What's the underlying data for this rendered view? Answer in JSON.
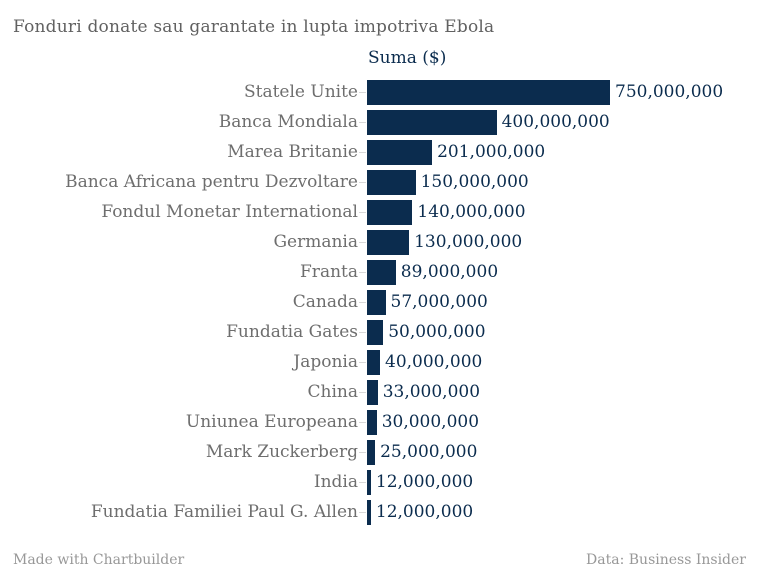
{
  "title": "Fonduri donate sau garantate in lupta impotriva Ebola",
  "series_label": "Suma ($)",
  "footer": {
    "left": "Made with Chartbuilder",
    "right": "Data: Business Insider"
  },
  "colors": {
    "bar": "#0b2c4e",
    "value_text": "#0b2c4e",
    "title_text": "#616161",
    "category_text": "#6e6e6e",
    "tick": "#d8d8d8",
    "footer_text": "#989898",
    "background": "#ffffff"
  },
  "chart_data": {
    "type": "bar",
    "orientation": "horizontal",
    "title": "Fonduri donate sau garantate in lupta impotriva Ebola",
    "series_name": "Suma ($)",
    "categories": [
      "Statele Unite",
      "Banca Mondiala",
      "Marea Britanie",
      "Banca Africana pentru Dezvoltare",
      "Fondul Monetar International",
      "Germania",
      "Franta",
      "Canada",
      "Fundatia Gates",
      "Japonia",
      "China",
      "Uniunea Europeana",
      "Mark Zuckerberg",
      "India",
      "Fundatia Familiei Paul G. Allen"
    ],
    "values": [
      750000000,
      400000000,
      201000000,
      150000000,
      140000000,
      130000000,
      89000000,
      57000000,
      50000000,
      40000000,
      33000000,
      30000000,
      25000000,
      12000000,
      12000000
    ],
    "value_labels": [
      "750,000,000",
      "400,000,000",
      "201,000,000",
      "150,000,000",
      "140,000,000",
      "130,000,000",
      "89,000,000",
      "57,000,000",
      "50,000,000",
      "40,000,000",
      "33,000,000",
      "30,000,000",
      "25,000,000",
      "12,000,000",
      "12,000,000"
    ],
    "xlim": [
      0,
      750000000
    ],
    "grid": false,
    "axis_labels_shown": false,
    "legend_position": "top",
    "source": "Data: Business Insider",
    "credit": "Made with Chartbuilder"
  }
}
